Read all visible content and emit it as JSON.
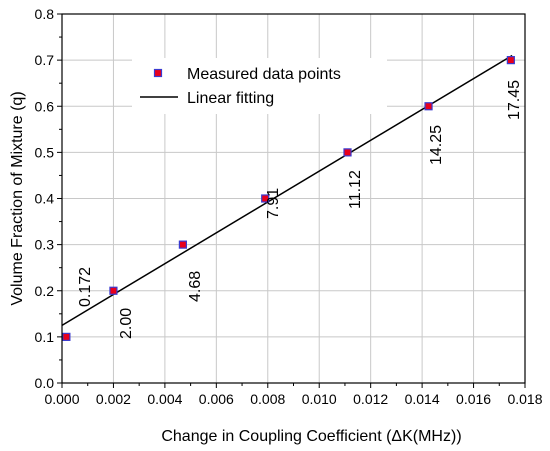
{
  "chart_data": {
    "type": "scatter",
    "title": "",
    "xlabel": "Change in Coupling Coefficient (ΔK(MHz))",
    "ylabel": "Volume Fraction of Mixture (q)",
    "xlim": [
      0.0,
      0.018
    ],
    "ylim": [
      0.0,
      0.8
    ],
    "x_ticks": [
      "0.000",
      "0.002",
      "0.004",
      "0.006",
      "0.008",
      "0.010",
      "0.012",
      "0.014",
      "0.016",
      "0.018"
    ],
    "y_ticks": [
      "0.0",
      "0.1",
      "0.2",
      "0.3",
      "0.4",
      "0.5",
      "0.6",
      "0.7",
      "0.8"
    ],
    "grid": true,
    "legend_position": "top-center",
    "series": [
      {
        "name": "Measured data points",
        "kind": "markers",
        "marker": "square",
        "fill_color": "#e8001c",
        "edge_color": "#3a3ad0",
        "x": [
          0.00017,
          0.002,
          0.0047,
          0.0079,
          0.0111,
          0.01425,
          0.01745
        ],
        "y": [
          0.1,
          0.2,
          0.3,
          0.4,
          0.5,
          0.6,
          0.7
        ]
      },
      {
        "name": "Linear fitting",
        "kind": "line",
        "color": "#000000",
        "x": [
          0.0,
          0.0175
        ],
        "y": [
          0.125,
          0.71
        ]
      }
    ],
    "annotations": [
      "0.172",
      "2.00",
      "4.68",
      "7.91",
      "11.12",
      "14.25",
      "17.45"
    ]
  }
}
